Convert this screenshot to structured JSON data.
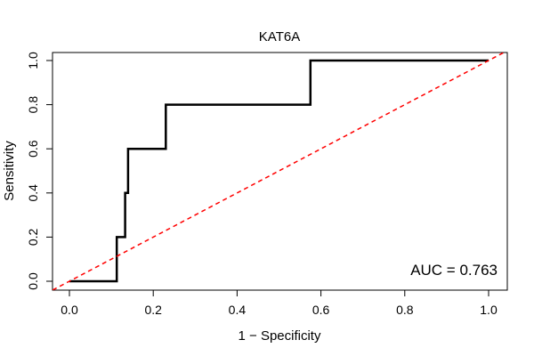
{
  "chart_data": {
    "type": "line",
    "title": "KAT6A",
    "xlabel": "1 − Specificity",
    "ylabel": "Sensitivity",
    "xlim": [
      0,
      1
    ],
    "ylim": [
      0,
      1
    ],
    "xticks": [
      "0.0",
      "0.2",
      "0.4",
      "0.6",
      "0.8",
      "1.0"
    ],
    "yticks": [
      "0.0",
      "0.2",
      "0.4",
      "0.6",
      "0.8",
      "1.0"
    ],
    "annotation": "AUC = 0.763",
    "grid": false,
    "series": [
      {
        "name": "ROC curve",
        "color": "#000000",
        "style": "solid",
        "x": [
          0.0,
          0.113,
          0.113,
          0.133,
          0.133,
          0.14,
          0.14,
          0.23,
          0.23,
          0.575,
          0.575,
          1.0
        ],
        "y": [
          0.0,
          0.0,
          0.2,
          0.2,
          0.4,
          0.4,
          0.6,
          0.6,
          0.8,
          0.8,
          1.0,
          1.0
        ]
      },
      {
        "name": "Reference diagonal",
        "color": "#ff0000",
        "style": "dashed",
        "x": [
          -0.04,
          1.04
        ],
        "y": [
          -0.04,
          1.04
        ]
      }
    ]
  }
}
